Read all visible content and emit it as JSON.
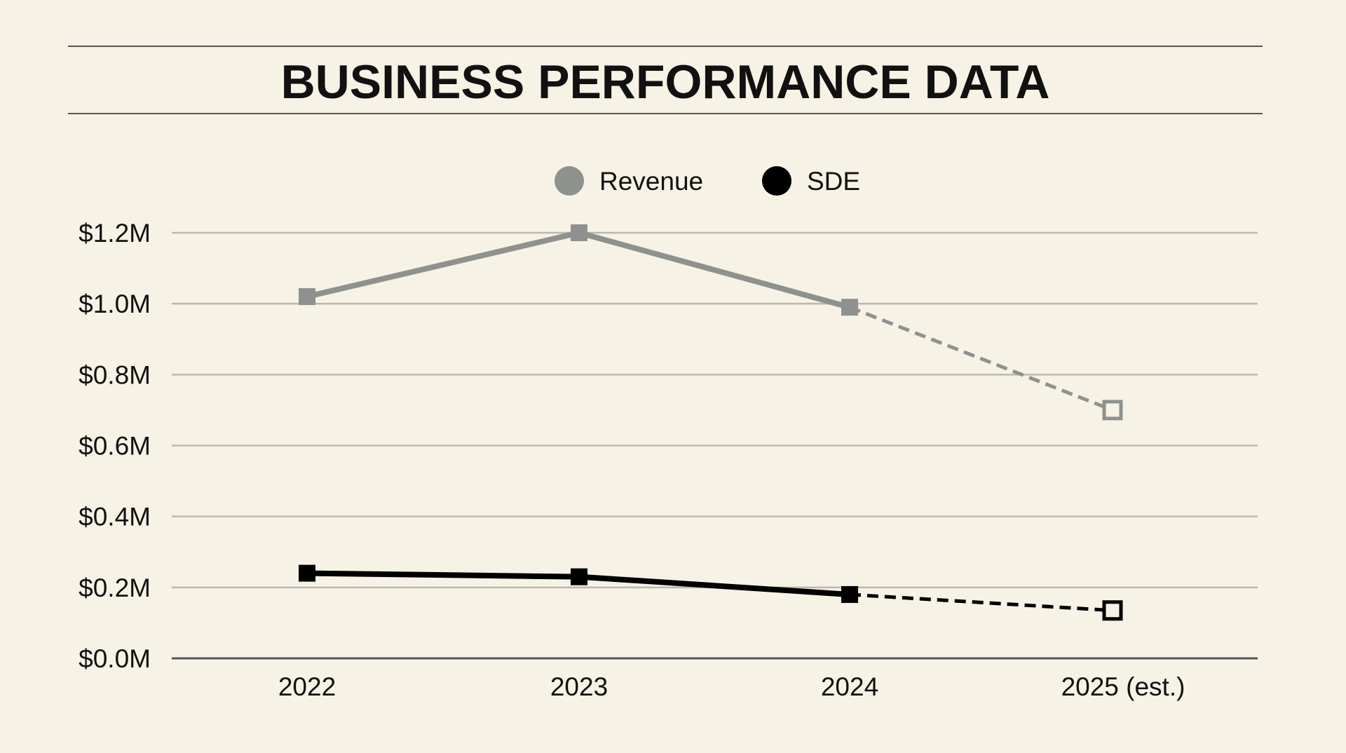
{
  "chart_data": {
    "type": "line",
    "title": "BUSINESS PERFORMANCE DATA",
    "categories": [
      "2022",
      "2023",
      "2024",
      "2025 (est.)"
    ],
    "yticks": [
      "$0.0M",
      "$0.2M",
      "$0.4M",
      "$0.6M",
      "$0.8M",
      "$1.0M",
      "$1.2M"
    ],
    "ylim": [
      0,
      1.2
    ],
    "yunit": "$M",
    "grid": true,
    "legend_placement": "top-center",
    "estimated_from_index": 2,
    "series": [
      {
        "name": "Revenue",
        "values": [
          1.02,
          1.2,
          0.99,
          0.7
        ],
        "color": "#8f918e"
      },
      {
        "name": "SDE",
        "values": [
          0.24,
          0.23,
          0.18,
          0.135
        ],
        "color": "#000000"
      }
    ]
  },
  "colors": {
    "background": "#f7f2e6",
    "grid": "#bdb8ab",
    "axis": "#555555"
  }
}
